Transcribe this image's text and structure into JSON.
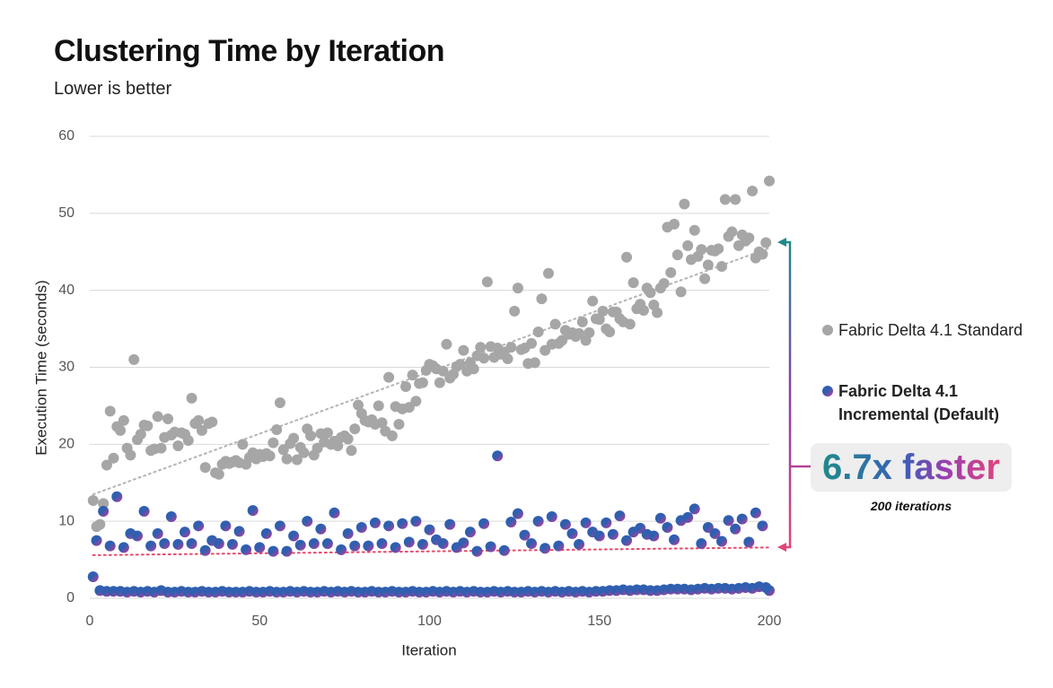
{
  "chart_data": {
    "type": "scatter",
    "title": "Clustering Time by Iteration",
    "subtitle": "Lower is better",
    "x_label": "Iteration",
    "y_label": "Execution Time (seconds)",
    "xlim": [
      0,
      200
    ],
    "xticks": [
      0,
      50,
      100,
      150,
      200
    ],
    "ylim": [
      0,
      60
    ],
    "yticks": [
      0,
      10,
      20,
      30,
      40,
      50,
      60
    ],
    "grid": true,
    "legend": "right",
    "x": [
      1,
      2,
      3,
      4,
      5,
      6,
      7,
      8,
      9,
      10,
      11,
      12,
      13,
      14,
      15,
      16,
      17,
      18,
      19,
      20,
      21,
      22,
      23,
      24,
      25,
      26,
      27,
      28,
      29,
      30,
      31,
      32,
      33,
      34,
      35,
      36,
      37,
      38,
      39,
      40,
      41,
      42,
      43,
      44,
      45,
      46,
      47,
      48,
      49,
      50,
      51,
      52,
      53,
      54,
      55,
      56,
      57,
      58,
      59,
      60,
      61,
      62,
      63,
      64,
      65,
      66,
      67,
      68,
      69,
      70,
      71,
      72,
      73,
      74,
      75,
      76,
      77,
      78,
      79,
      80,
      81,
      82,
      83,
      84,
      85,
      86,
      87,
      88,
      89,
      90,
      91,
      92,
      93,
      94,
      95,
      96,
      97,
      98,
      99,
      100,
      101,
      102,
      103,
      104,
      105,
      106,
      107,
      108,
      109,
      110,
      111,
      112,
      113,
      114,
      115,
      116,
      117,
      118,
      119,
      120,
      121,
      122,
      123,
      124,
      125,
      126,
      127,
      128,
      129,
      130,
      131,
      132,
      133,
      134,
      135,
      136,
      137,
      138,
      139,
      140,
      141,
      142,
      143,
      144,
      145,
      146,
      147,
      148,
      149,
      150,
      151,
      152,
      153,
      154,
      155,
      156,
      157,
      158,
      159,
      160,
      161,
      162,
      163,
      164,
      165,
      166,
      167,
      168,
      169,
      170,
      171,
      172,
      173,
      174,
      175,
      176,
      177,
      178,
      179,
      180,
      181,
      182,
      183,
      184,
      185,
      186,
      187,
      188,
      189,
      190,
      191,
      192,
      193,
      194,
      195,
      196,
      197,
      198,
      199,
      200
    ],
    "series": [
      {
        "name": "Fabric Delta 4.1 Standard",
        "color": "#a6a6a6",
        "trend": [
          13.5,
          45.5
        ],
        "trend_color": "#b4b4b4",
        "values": [
          12.7,
          9.3,
          9.6,
          12.3,
          17.3,
          24.3,
          18.2,
          22.3,
          21.8,
          23.1,
          19.5,
          18.6,
          31.0,
          20.6,
          21.3,
          22.5,
          22.4,
          19.2,
          19.4,
          23.6,
          19.5,
          20.9,
          23.3,
          21.2,
          21.6,
          19.8,
          21.5,
          21.3,
          20.5,
          26.0,
          22.7,
          23.1,
          21.8,
          17.0,
          22.7,
          22.9,
          16.3,
          16.1,
          17.4,
          17.8,
          17.5,
          17.7,
          17.9,
          17.6,
          20.0,
          17.4,
          18.3,
          18.9,
          18.1,
          18.7,
          18.4,
          18.8,
          18.5,
          20.2,
          21.9,
          25.4,
          19.3,
          18.1,
          20.1,
          20.8,
          18.0,
          19.6,
          18.9,
          22.0,
          21.1,
          18.6,
          19.5,
          21.4,
          20.3,
          21.5,
          20.0,
          20.4,
          19.8,
          20.9,
          21.1,
          20.7,
          19.2,
          22.0,
          25.1,
          24.0,
          23.1,
          22.9,
          23.2,
          22.6,
          25.0,
          22.8,
          21.7,
          28.7,
          21.1,
          24.9,
          22.6,
          24.6,
          27.5,
          24.8,
          29.0,
          25.6,
          27.9,
          28.0,
          29.6,
          30.4,
          30.2,
          29.8,
          28.0,
          29.5,
          33.0,
          28.6,
          29.1,
          30.1,
          30.4,
          32.2,
          29.5,
          30.6,
          29.8,
          31.5,
          32.6,
          31.2,
          41.1,
          32.7,
          31.3,
          32.5,
          31.7,
          32.0,
          31.1,
          32.6,
          37.3,
          40.3,
          32.3,
          32.5,
          30.5,
          33.1,
          30.6,
          34.6,
          38.9,
          32.2,
          42.2,
          33.0,
          35.6,
          33.1,
          33.5,
          34.8,
          34.3,
          34.5,
          34.0,
          34.4,
          35.9,
          33.5,
          34.5,
          38.6,
          36.3,
          36.2,
          37.3,
          35.0,
          34.6,
          37.2,
          37.2,
          36.3,
          35.9,
          44.3,
          35.6,
          41.0,
          37.6,
          38.2,
          37.4,
          40.3,
          39.7,
          38.1,
          37.1,
          40.3,
          40.9,
          48.2,
          42.3,
          48.6,
          44.6,
          39.8,
          51.2,
          45.8,
          44.0,
          47.8,
          44.4,
          45.3,
          41.5,
          43.3,
          45.2,
          45.1,
          45.4,
          43.1,
          51.8,
          47.0,
          47.6,
          51.8,
          45.8,
          47.2,
          46.4,
          46.8,
          52.9,
          44.2,
          45.0,
          44.7,
          46.2,
          54.2
        ]
      },
      {
        "name": "Fabric Delta 4.1 Incremental (Default)",
        "color": "#2f5fb0",
        "trend": [
          5.6,
          6.6
        ],
        "trend_color": "#e8496a",
        "values": [
          2.8,
          7.5,
          1.0,
          11.3,
          0.9,
          6.8,
          0.9,
          13.2,
          0.9,
          6.6,
          0.8,
          8.4,
          0.9,
          8.1,
          0.8,
          11.3,
          0.9,
          6.8,
          0.8,
          8.4,
          1.0,
          7.1,
          0.8,
          10.6,
          0.8,
          7.0,
          0.9,
          8.6,
          0.8,
          7.1,
          0.8,
          9.4,
          0.9,
          6.2,
          0.8,
          7.5,
          0.8,
          7.1,
          0.9,
          9.4,
          0.8,
          7.0,
          0.8,
          8.7,
          0.8,
          6.3,
          0.9,
          11.4,
          0.8,
          6.6,
          0.8,
          8.4,
          0.9,
          6.1,
          0.8,
          9.4,
          0.8,
          6.1,
          0.9,
          8.1,
          0.8,
          6.9,
          0.9,
          10.0,
          0.8,
          7.1,
          0.8,
          9.0,
          0.9,
          7.1,
          0.8,
          11.1,
          0.9,
          6.3,
          0.8,
          8.4,
          0.9,
          6.8,
          0.8,
          9.2,
          0.8,
          6.8,
          0.9,
          9.8,
          0.8,
          7.1,
          0.8,
          9.4,
          0.9,
          6.6,
          0.8,
          9.7,
          0.8,
          7.3,
          0.9,
          10.0,
          0.8,
          7.0,
          0.8,
          8.9,
          0.9,
          7.6,
          0.8,
          7.1,
          0.9,
          9.6,
          0.8,
          6.6,
          0.9,
          7.2,
          0.8,
          8.6,
          0.9,
          6.1,
          0.8,
          9.7,
          0.8,
          6.7,
          0.9,
          18.5,
          0.8,
          6.2,
          0.9,
          9.9,
          0.8,
          11.0,
          0.8,
          8.2,
          0.9,
          7.1,
          0.8,
          10.0,
          0.9,
          6.5,
          0.8,
          10.6,
          0.9,
          6.8,
          0.8,
          9.6,
          0.9,
          8.4,
          0.8,
          7.0,
          0.9,
          9.8,
          0.8,
          8.6,
          0.9,
          8.1,
          0.9,
          9.8,
          1.0,
          8.3,
          1.0,
          10.7,
          1.1,
          7.5,
          1.0,
          8.6,
          1.1,
          9.1,
          1.1,
          8.3,
          1.0,
          8.1,
          1.0,
          10.4,
          1.1,
          9.2,
          1.2,
          7.6,
          1.2,
          10.1,
          1.2,
          10.5,
          1.1,
          11.6,
          1.2,
          7.1,
          1.3,
          9.2,
          1.2,
          8.4,
          1.3,
          7.4,
          1.3,
          10.1,
          1.2,
          9.0,
          1.3,
          10.3,
          1.4,
          7.3,
          1.3,
          11.1,
          1.5,
          9.4,
          1.4,
          1.0
        ]
      }
    ],
    "annotation": "6.7x faster",
    "annotation_note": "200 iterations"
  }
}
